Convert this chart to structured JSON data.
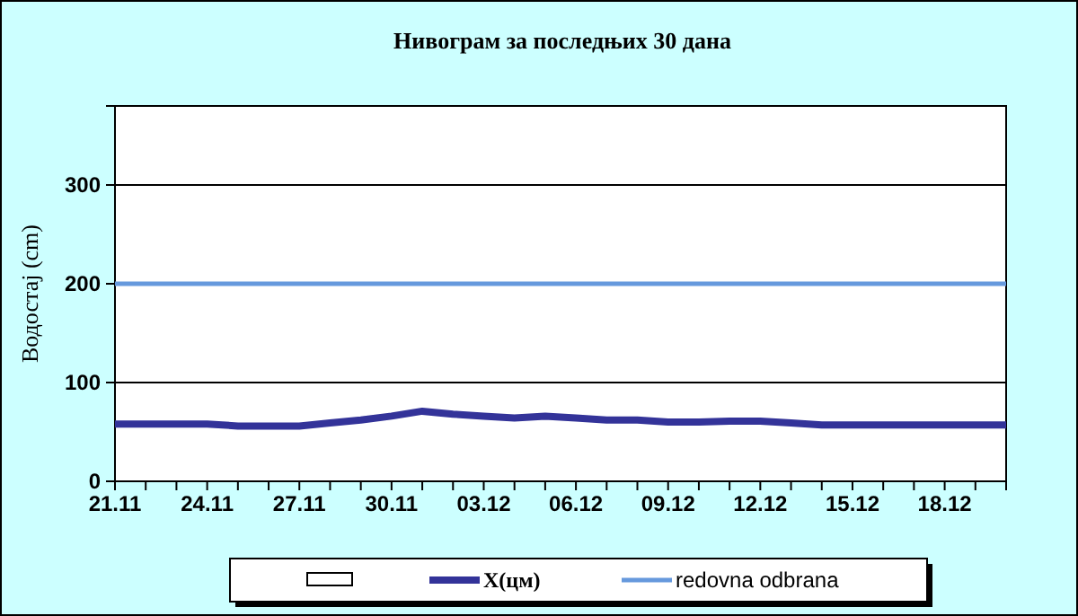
{
  "chart_data": {
    "type": "line",
    "title": "Нивограм за последњих 30 дана",
    "ylabel": "Водостај (cm)",
    "categories": [
      "21.11",
      null,
      null,
      "24.11",
      null,
      null,
      "27.11",
      null,
      null,
      "30.11",
      null,
      null,
      "03.12",
      null,
      null,
      "06.12",
      null,
      null,
      "09.12",
      null,
      null,
      "12.12",
      null,
      null,
      "15.12",
      null,
      null,
      "18.12",
      null,
      null
    ],
    "series": [
      {
        "name": "X(цм)",
        "color": "#333399",
        "values": [
          58,
          58,
          58,
          58,
          56,
          56,
          56,
          59,
          62,
          66,
          71,
          68,
          66,
          64,
          66,
          64,
          62,
          62,
          60,
          60,
          61,
          61,
          59,
          57,
          57,
          57,
          57,
          57,
          57,
          57
        ]
      },
      {
        "name": "redovna odbrana",
        "color": "#6699dd",
        "values": [
          200,
          200,
          200,
          200,
          200,
          200,
          200,
          200,
          200,
          200,
          200,
          200,
          200,
          200,
          200,
          200,
          200,
          200,
          200,
          200,
          200,
          200,
          200,
          200,
          200,
          200,
          200,
          200,
          200,
          200
        ]
      }
    ],
    "ylim": [
      0,
      380
    ],
    "yticks": [
      0,
      100,
      200,
      300
    ],
    "grid": "y",
    "legend": "bottom",
    "marker": "none",
    "line_style": "solid"
  }
}
